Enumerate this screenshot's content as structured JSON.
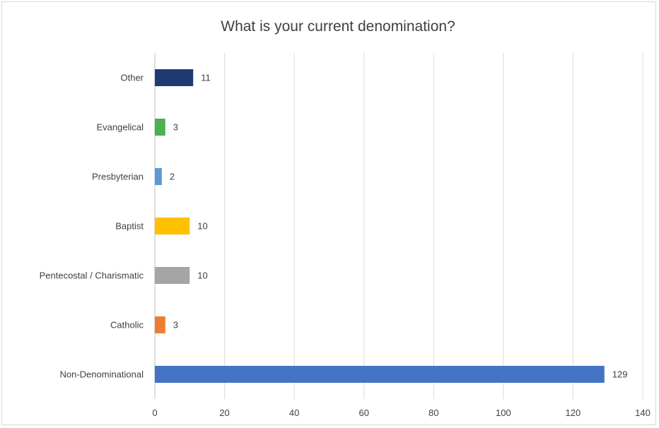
{
  "chart_data": {
    "type": "bar",
    "orientation": "horizontal",
    "title": "What is your current denomination?",
    "categories": [
      "Other",
      "Evangelical",
      "Presbyterian",
      "Baptist",
      "Pentecostal / Charismatic",
      "Catholic",
      "Non-Denominational"
    ],
    "values": [
      11,
      3,
      2,
      10,
      10,
      3,
      129
    ],
    "colors": [
      "#1f3b73",
      "#4caf50",
      "#5b9bd5",
      "#ffc000",
      "#a5a5a5",
      "#ed7d31",
      "#4472c4"
    ],
    "xlim": [
      0,
      140
    ],
    "xticks": [
      0,
      20,
      40,
      60,
      80,
      100,
      120,
      140
    ],
    "grid": true,
    "legend": "none",
    "data_labels": true
  }
}
